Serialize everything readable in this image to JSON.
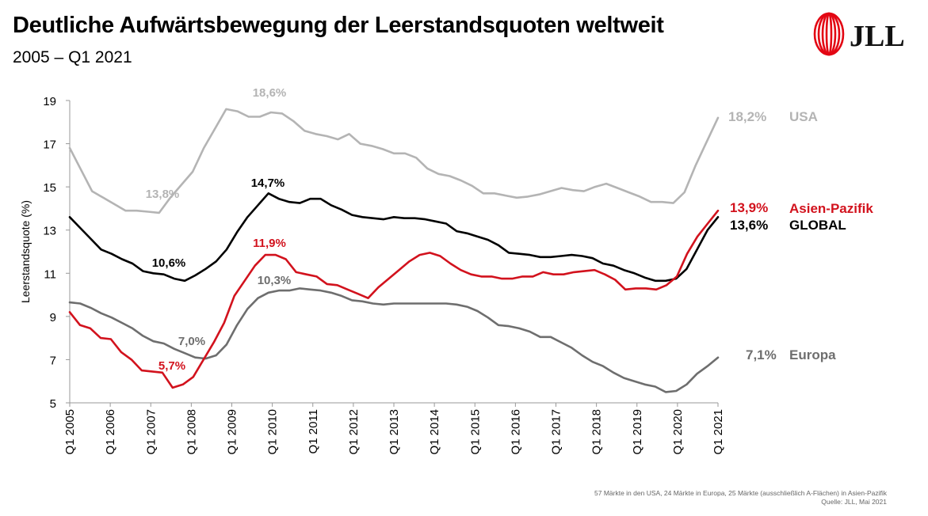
{
  "header": {
    "title": "Deutliche Aufwärtsbewegung der Leerstandsquoten weltweit",
    "subtitle": "2005 – Q1 2021"
  },
  "logo": {
    "text": "JLL",
    "color": "#e30613"
  },
  "footnote": {
    "line1": "57 Märkte in den USA, 24 Märkte in Europa, 25 Märkte (ausschließlich A-Flächen) in Asien-Pazifik",
    "line2": "Quelle: JLL, Mai 2021"
  },
  "chart_data": {
    "type": "line",
    "ylabel": "Leerstandsquote (%)",
    "ylim": [
      5,
      19
    ],
    "yticks": [
      "5",
      "7",
      "9",
      "11",
      "13",
      "15",
      "17",
      "19"
    ],
    "xticks": [
      "Q1 2005",
      "Q1 2006",
      "Q1 2007",
      "Q1 2008",
      "Q1 2009",
      "Q1 2010",
      "Q1 2011",
      "Q1 2012",
      "Q1 2013",
      "Q1 2014",
      "Q1 2015",
      "Q1 2016",
      "Q1 2017",
      "Q1 2018",
      "Q1 2019",
      "Q1 2020",
      "Q1 2021"
    ],
    "grid": false,
    "series": [
      {
        "name": "USA",
        "color": "#b4b4b4",
        "end_label": "18,2%",
        "values": [
          16.8,
          15.8,
          14.8,
          14.5,
          14.2,
          13.9,
          13.9,
          13.85,
          13.8,
          14.5,
          15.1,
          15.7,
          16.8,
          17.7,
          18.6,
          18.5,
          18.25,
          18.25,
          18.45,
          18.4,
          18.05,
          17.6,
          17.45,
          17.35,
          17.2,
          17.45,
          17.0,
          16.9,
          16.75,
          16.55,
          16.55,
          16.35,
          15.85,
          15.6,
          15.5,
          15.3,
          15.05,
          14.7,
          14.7,
          14.6,
          14.5,
          14.55,
          14.65,
          14.8,
          14.95,
          14.85,
          14.8,
          15.0,
          15.15,
          14.95,
          14.75,
          14.55,
          14.3,
          14.3,
          14.25,
          14.75,
          16.0,
          17.1,
          18.2
        ]
      },
      {
        "name": "GLOBAL",
        "color": "#000000",
        "end_label": "13,6%",
        "values": [
          13.6,
          13.1,
          12.6,
          12.1,
          11.9,
          11.65,
          11.45,
          11.1,
          11.0,
          10.95,
          10.75,
          10.65,
          10.9,
          11.2,
          11.55,
          12.1,
          12.9,
          13.6,
          14.15,
          14.7,
          14.45,
          14.3,
          14.25,
          14.45,
          14.45,
          14.15,
          13.95,
          13.7,
          13.6,
          13.55,
          13.5,
          13.6,
          13.55,
          13.55,
          13.5,
          13.4,
          13.3,
          12.95,
          12.85,
          12.7,
          12.55,
          12.3,
          11.95,
          11.9,
          11.85,
          11.75,
          11.75,
          11.8,
          11.85,
          11.8,
          11.7,
          11.45,
          11.35,
          11.15,
          11.0,
          10.8,
          10.65,
          10.65,
          10.75,
          11.2,
          12.1,
          13.0,
          13.6
        ]
      },
      {
        "name": "Asien-Pazifik",
        "color": "#d2121d",
        "end_label": "13,9%",
        "values": [
          9.2,
          8.6,
          8.45,
          8.0,
          7.95,
          7.35,
          7.0,
          6.5,
          6.45,
          6.4,
          5.7,
          5.85,
          6.2,
          7.0,
          7.8,
          8.7,
          9.95,
          10.65,
          11.35,
          11.85,
          11.85,
          11.65,
          11.05,
          10.95,
          10.85,
          10.5,
          10.45,
          10.25,
          10.05,
          9.85,
          10.35,
          10.75,
          11.15,
          11.55,
          11.85,
          11.95,
          11.8,
          11.45,
          11.15,
          10.95,
          10.85,
          10.85,
          10.75,
          10.75,
          10.85,
          10.85,
          11.05,
          10.95,
          10.95,
          11.05,
          11.1,
          11.15,
          10.95,
          10.7,
          10.25,
          10.3,
          10.3,
          10.25,
          10.45,
          10.85,
          11.9,
          12.7,
          13.3,
          13.9
        ]
      },
      {
        "name": "Europa",
        "color": "#6e6e6e",
        "end_label": "7,1%",
        "values": [
          9.65,
          9.6,
          9.4,
          9.15,
          8.95,
          8.7,
          8.45,
          8.1,
          7.85,
          7.75,
          7.5,
          7.3,
          7.1,
          7.05,
          7.2,
          7.7,
          8.6,
          9.35,
          9.85,
          10.1,
          10.2,
          10.2,
          10.3,
          10.25,
          10.2,
          10.1,
          9.95,
          9.75,
          9.7,
          9.6,
          9.55,
          9.6,
          9.6,
          9.6,
          9.6,
          9.6,
          9.6,
          9.55,
          9.45,
          9.25,
          8.95,
          8.6,
          8.55,
          8.45,
          8.3,
          8.05,
          8.05,
          7.8,
          7.55,
          7.2,
          6.9,
          6.7,
          6.4,
          6.15,
          6.0,
          5.85,
          5.75,
          5.5,
          5.55,
          5.85,
          6.35,
          6.7,
          7.1
        ]
      }
    ],
    "annotations": [
      {
        "text": "18,6%",
        "series": "USA"
      },
      {
        "text": "13,8%",
        "series": "USA"
      },
      {
        "text": "14,7%",
        "series": "GLOBAL"
      },
      {
        "text": "10,6%",
        "series": "GLOBAL"
      },
      {
        "text": "11,9%",
        "series": "Asien-Pazifik"
      },
      {
        "text": "5,7%",
        "series": "Asien-Pazifik"
      },
      {
        "text": "10,3%",
        "series": "Europa"
      },
      {
        "text": "7,0%",
        "series": "Europa"
      }
    ]
  }
}
